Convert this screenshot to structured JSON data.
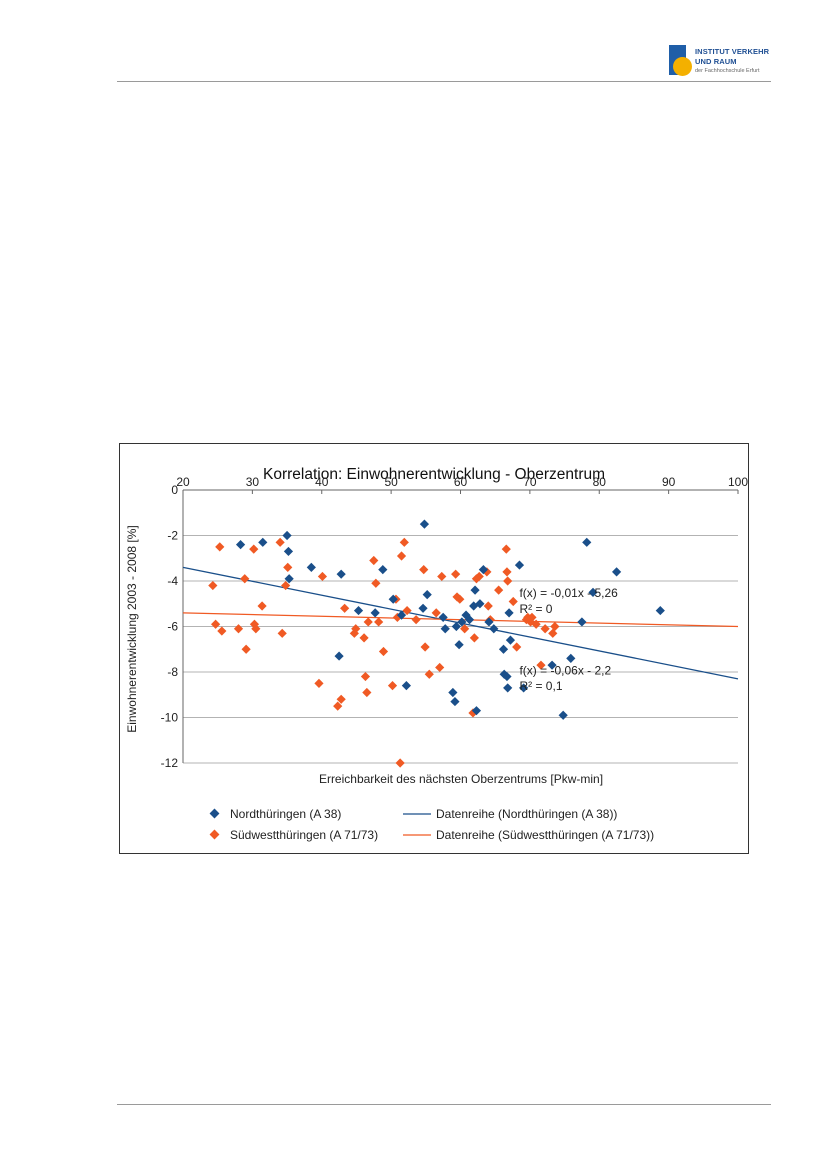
{
  "header": {
    "logo": {
      "line1": "INSTITUT VERKEHR",
      "line2": "UND RAUM",
      "line3": "der Fachhochschule Erfurt"
    }
  },
  "chart_data": {
    "type": "scatter",
    "title": "Korrelation: Einwohnerentwicklung - Oberzentrum",
    "xlabel": "Erreichbarkeit des nächsten Oberzentrums [Pkw-min]",
    "ylabel": "Einwohnerentwicklung 2003 - 2008 [%]",
    "xlim": [
      20,
      100
    ],
    "ylim": [
      -12,
      0
    ],
    "xticks": [
      20,
      30,
      40,
      50,
      60,
      70,
      80,
      90,
      100
    ],
    "yticks": [
      0,
      -2,
      -4,
      -6,
      -8,
      -10,
      -12
    ],
    "grid": "horizontal",
    "legend_position": "bottom",
    "series": [
      {
        "name": "Nordthüringen (A 38)",
        "color": "#1a4f8a",
        "marker": "diamond",
        "points": [
          [
            28.3,
            -2.4
          ],
          [
            31.5,
            -2.3
          ],
          [
            35,
            -2
          ],
          [
            35.2,
            -2.7
          ],
          [
            35.3,
            -3.9
          ],
          [
            38.5,
            -3.4
          ],
          [
            42.8,
            -3.7
          ],
          [
            42.5,
            -7.3
          ],
          [
            45.3,
            -5.3
          ],
          [
            47.7,
            -5.4
          ],
          [
            48.8,
            -3.5
          ],
          [
            50.3,
            -4.8
          ],
          [
            51.5,
            -5.5
          ],
          [
            52.2,
            -8.6
          ],
          [
            54.8,
            -1.5
          ],
          [
            54.6,
            -5.2
          ],
          [
            55.2,
            -4.6
          ],
          [
            57.5,
            -5.6
          ],
          [
            57.8,
            -6.1
          ],
          [
            58.9,
            -8.9
          ],
          [
            59.2,
            -9.3
          ],
          [
            59.8,
            -6.8
          ],
          [
            59.4,
            -6
          ],
          [
            60.2,
            -5.8
          ],
          [
            60.8,
            -5.5
          ],
          [
            61.3,
            -5.7
          ],
          [
            61.9,
            -5.1
          ],
          [
            62.1,
            -4.4
          ],
          [
            62.3,
            -9.7
          ],
          [
            62.8,
            -5
          ],
          [
            63.3,
            -3.5
          ],
          [
            64.1,
            -5.8
          ],
          [
            64.8,
            -6.1
          ],
          [
            66.2,
            -7
          ],
          [
            66.3,
            -8.1
          ],
          [
            66.7,
            -8.2
          ],
          [
            66.8,
            -8.7
          ],
          [
            67.0,
            -5.4
          ],
          [
            67.2,
            -6.6
          ],
          [
            68.5,
            -3.3
          ],
          [
            69.1,
            -8.7
          ],
          [
            73.2,
            -7.7
          ],
          [
            74.8,
            -9.9
          ],
          [
            75.9,
            -7.4
          ],
          [
            77.5,
            -5.8
          ],
          [
            78.2,
            -2.3
          ],
          [
            79.1,
            -4.5
          ],
          [
            82.5,
            -3.6
          ],
          [
            88.8,
            -5.3
          ]
        ],
        "trendline": {
          "name": "Datenreihe (Nordthüringen (A 38))",
          "color": "#1a4f8a",
          "y_at_xmin": -3.4,
          "y_at_xmax": -8.3,
          "equation": "f(x) = -0,06x - 2,2",
          "r2": "R² = 0,1"
        }
      },
      {
        "name": "Südwestthüringen (A 71/73)",
        "color": "#f05a24",
        "marker": "diamond",
        "points": [
          [
            24.3,
            -4.2
          ],
          [
            24.7,
            -5.9
          ],
          [
            25.3,
            -2.5
          ],
          [
            25.6,
            -6.2
          ],
          [
            28,
            -6.1
          ],
          [
            28.9,
            -3.9
          ],
          [
            29.1,
            -7
          ],
          [
            30.2,
            -2.6
          ],
          [
            30.3,
            -5.9
          ],
          [
            30.5,
            -6.1
          ],
          [
            31.4,
            -5.1
          ],
          [
            34,
            -2.3
          ],
          [
            34.3,
            -6.3
          ],
          [
            34.8,
            -4.2
          ],
          [
            35.1,
            -3.4
          ],
          [
            39.6,
            -8.5
          ],
          [
            40.1,
            -3.8
          ],
          [
            42.3,
            -9.5
          ],
          [
            42.8,
            -9.2
          ],
          [
            43.3,
            -5.2
          ],
          [
            44.7,
            -6.3
          ],
          [
            44.9,
            -6.1
          ],
          [
            46.1,
            -6.5
          ],
          [
            46.3,
            -8.2
          ],
          [
            46.5,
            -8.9
          ],
          [
            46.7,
            -5.8
          ],
          [
            47.5,
            -3.1
          ],
          [
            47.8,
            -4.1
          ],
          [
            48.2,
            -5.8
          ],
          [
            48.9,
            -7.1
          ],
          [
            50.2,
            -8.6
          ],
          [
            50.7,
            -4.8
          ],
          [
            50.9,
            -5.6
          ],
          [
            51.3,
            -12
          ],
          [
            51.5,
            -2.9
          ],
          [
            51.9,
            -2.3
          ],
          [
            52.3,
            -5.3
          ],
          [
            53.6,
            -5.7
          ],
          [
            54.7,
            -3.5
          ],
          [
            54.9,
            -6.9
          ],
          [
            55.5,
            -8.1
          ],
          [
            56.5,
            -5.4
          ],
          [
            57,
            -7.8
          ],
          [
            57.3,
            -3.8
          ],
          [
            59.3,
            -3.7
          ],
          [
            59.5,
            -4.7
          ],
          [
            59.9,
            -4.8
          ],
          [
            60.6,
            -6.1
          ],
          [
            61.8,
            -9.8
          ],
          [
            62,
            -6.5
          ],
          [
            62.3,
            -3.9
          ],
          [
            62.7,
            -3.8
          ],
          [
            63.8,
            -3.6
          ],
          [
            64,
            -5.1
          ],
          [
            64.3,
            -5.7
          ],
          [
            65.5,
            -4.4
          ],
          [
            66.6,
            -2.6
          ],
          [
            66.7,
            -3.6
          ],
          [
            66.8,
            -4
          ],
          [
            67.6,
            -4.9
          ],
          [
            68.1,
            -6.9
          ],
          [
            69.5,
            -5.7
          ],
          [
            69.7,
            -5.6
          ],
          [
            70.1,
            -5.8
          ],
          [
            70.3,
            -5.6
          ],
          [
            70.9,
            -5.9
          ],
          [
            71.6,
            -7.7
          ],
          [
            72.2,
            -6.1
          ],
          [
            73.3,
            -6.3
          ],
          [
            73.6,
            -6
          ]
        ],
        "trendline": {
          "name": "Datenreihe (Südwestthüringen (A 71/73))",
          "color": "#f05a24",
          "y_at_xmin": -5.4,
          "y_at_xmax": -6,
          "equation": "f(x) = -0,01x - 5,26",
          "r2": "R² = 0"
        }
      }
    ],
    "annotations": [
      {
        "text_path": "series.1.trendline.equation",
        "x": 68.5,
        "y": -4.7
      },
      {
        "text_path": "series.1.trendline.r2",
        "x": 68.5,
        "y": -5.4
      },
      {
        "text_path": "series.0.trendline.equation",
        "x": 68.5,
        "y": -8.1
      },
      {
        "text_path": "series.0.trendline.r2",
        "x": 68.5,
        "y": -8.8
      }
    ]
  }
}
